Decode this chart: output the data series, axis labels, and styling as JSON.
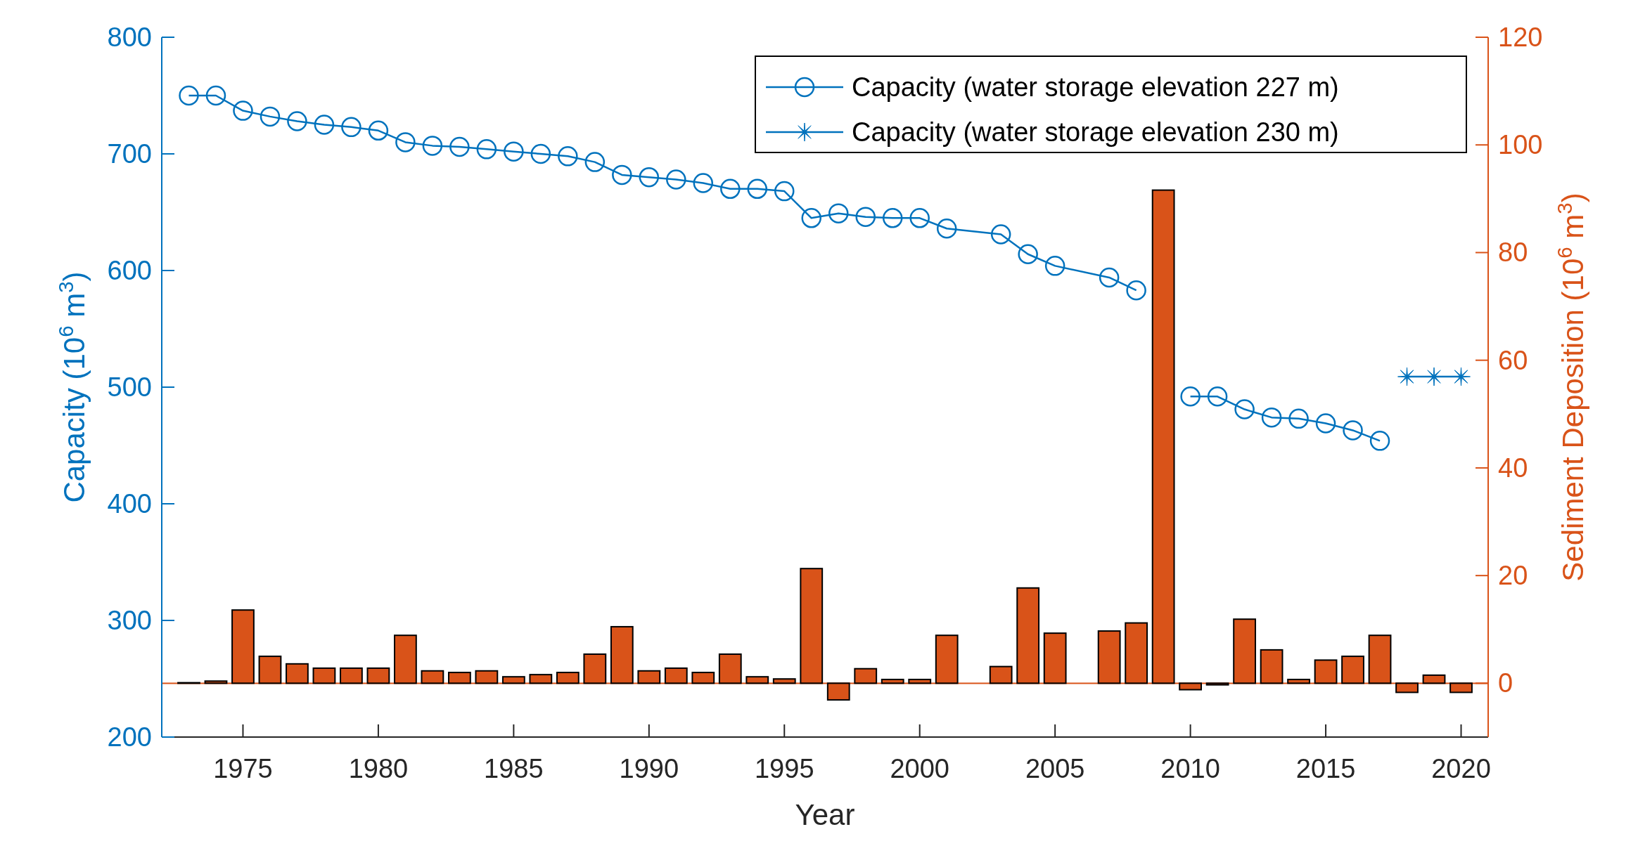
{
  "chart_data": {
    "type": "line",
    "xlabel": "Year",
    "ylabel": "Capacity (10$^{6}$ m$^{3}$)",
    "y2label": "Sediment Deposition (10$^{6}$ m$^{3}$)",
    "xlim": [
      1972,
      2021
    ],
    "xticks": [
      1975,
      1980,
      1985,
      1990,
      1995,
      2000,
      2005,
      2010,
      2015,
      2020
    ],
    "ylim": [
      200,
      800
    ],
    "yticks": [
      200,
      300,
      400,
      500,
      600,
      700,
      800
    ],
    "y2lim": [
      -10,
      120
    ],
    "y2ticks": [
      0,
      20,
      40,
      60,
      80,
      100,
      120
    ],
    "legend": "top right",
    "grid": false,
    "ref_lines": [
      {
        "axis": "y2",
        "value": 0,
        "color": "#d95319"
      }
    ],
    "series": [
      {
        "type": "bar",
        "axis": "y2",
        "color": "#d95319",
        "x": [
          1973,
          1974,
          1975,
          1976,
          1977,
          1978,
          1979,
          1980,
          1981,
          1982,
          1983,
          1984,
          1985,
          1986,
          1987,
          1988,
          1989,
          1990,
          1991,
          1992,
          1993,
          1994,
          1995,
          1996,
          1997,
          1998,
          1999,
          2000,
          2001,
          2003,
          2004,
          2005,
          2007,
          2008,
          2009,
          2010,
          2011,
          2012,
          2013,
          2014,
          2015,
          2016,
          2017,
          2018,
          2019,
          2020
        ],
        "values": [
          0.1,
          0.4,
          13.6,
          5.0,
          3.6,
          2.8,
          2.8,
          2.8,
          8.9,
          2.3,
          2.0,
          2.3,
          1.2,
          1.6,
          2.0,
          5.4,
          10.5,
          2.3,
          2.8,
          2.0,
          5.4,
          1.2,
          0.8,
          21.3,
          -3.1,
          2.7,
          0.7,
          0.7,
          8.9,
          3.1,
          17.7,
          9.3,
          9.7,
          11.2,
          91.6,
          -1.2,
          -0.3,
          11.9,
          6.2,
          0.7,
          4.3,
          5.0,
          8.9,
          -1.7,
          1.5,
          -1.7
        ]
      },
      {
        "name": "Capacity (water storage elevation 227 m)",
        "color": "#0072bd",
        "marker": "circle",
        "x": [
          1973,
          1974,
          1975,
          1976,
          1977,
          1978,
          1979,
          1980,
          1981,
          1982,
          1983,
          1984,
          1985,
          1986,
          1987,
          1988,
          1989,
          1990,
          1991,
          1992,
          1993,
          1994,
          1995,
          1996,
          1997,
          1998,
          1999,
          2000,
          2001,
          2003,
          2004,
          2005,
          2007,
          2008,
          2009,
          2010,
          2011,
          2012,
          2013,
          2014,
          2015,
          2016,
          2017
        ],
        "values": [
          750,
          750,
          737,
          732,
          728,
          725,
          723,
          720,
          710,
          707,
          706,
          704,
          702,
          700,
          698,
          693,
          682,
          680,
          678,
          675,
          670,
          670,
          668,
          645,
          649,
          646,
          645,
          645,
          636,
          631,
          614,
          604,
          594,
          583,
          null,
          492,
          492,
          481,
          474,
          473,
          469,
          463,
          454
        ]
      },
      {
        "name": "Capacity (water storage elevation 230 m)",
        "color": "#0072bd",
        "marker": "cross",
        "x": [
          2018,
          2019,
          2020
        ],
        "values": [
          509,
          509,
          509
        ]
      }
    ]
  }
}
